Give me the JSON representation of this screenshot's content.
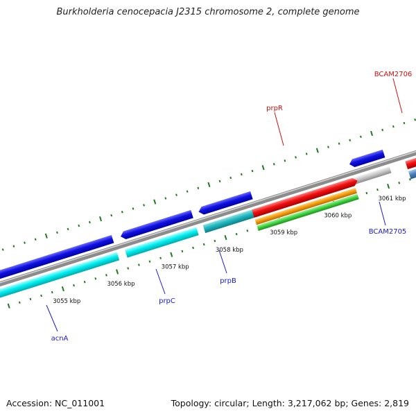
{
  "title": "Burkholderia cenocepacia J2315 chromosome 2, complete genome",
  "footer": {
    "accession": "Accession: NC_011001",
    "summary": "Topology: circular; Length: 3,217,062 bp; Genes: 2,819"
  },
  "colors": {
    "backbone": "#8c8c8c",
    "forward_gene": "#1414e6",
    "reverse_gene": "#00f0f0",
    "red_feature": "#f01010",
    "orange_feature": "#f29a0a",
    "green_feature": "#3cd23c",
    "steel_feature": "#4a7fb8",
    "gray_feature": "#bdbdbd",
    "tick": "#1e7a1e",
    "label_blue": "#1a1acd",
    "label_red": "#cc1010"
  },
  "scale_labels": [
    "3055 kbp",
    "3056 kbp",
    "3057 kbp",
    "3058 kbp",
    "3059 kbp",
    "3060 kbp",
    "3061 kbp"
  ],
  "gene_labels": {
    "acnA": "acnA",
    "prpC": "prpC",
    "prpB": "prpB",
    "prpR": "prpR",
    "BCAM2705": "BCAM2705",
    "BCAM2706": "BCAM2706"
  }
}
